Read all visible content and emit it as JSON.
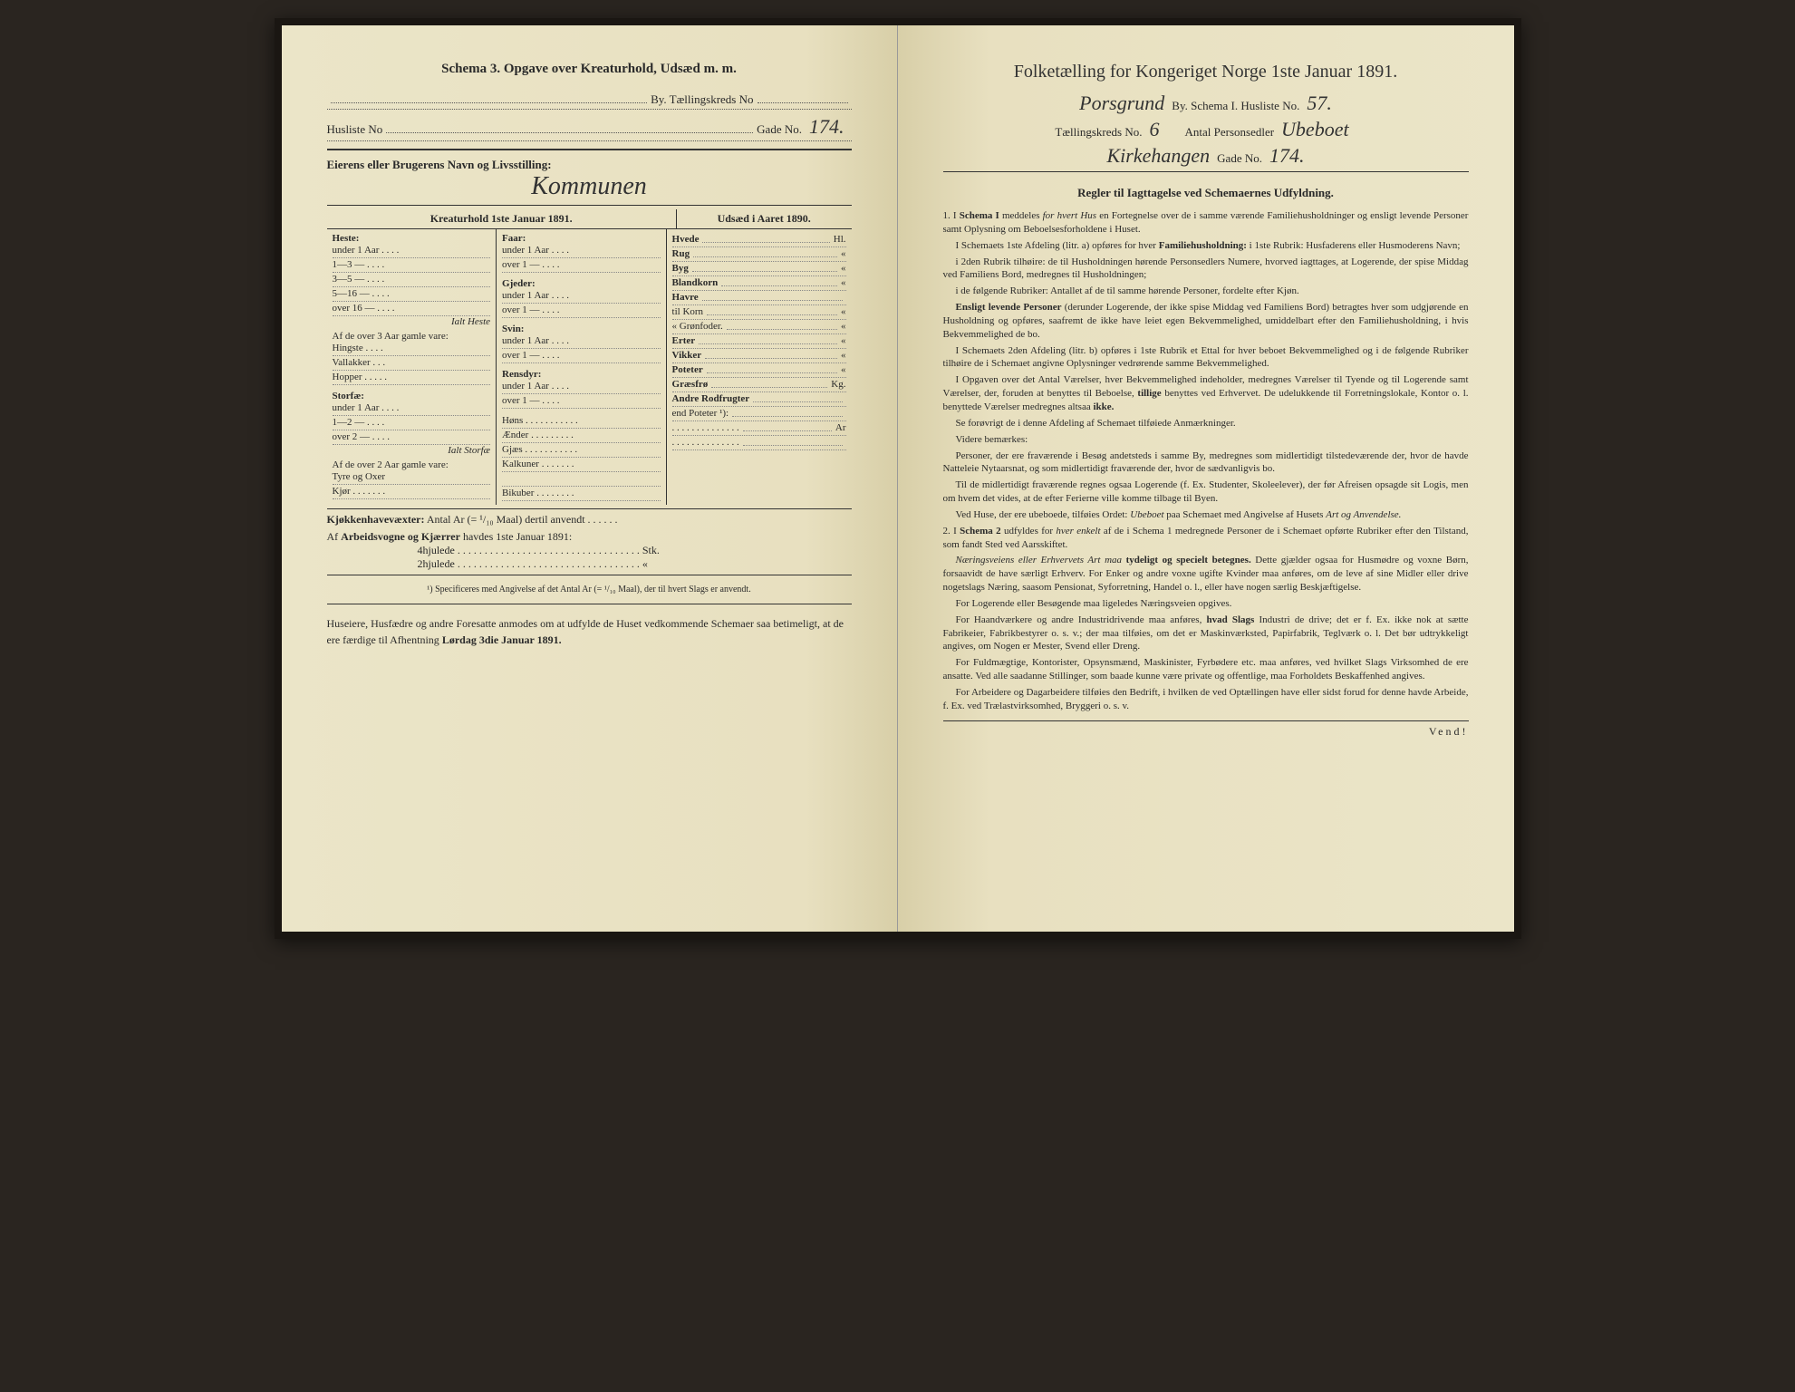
{
  "left": {
    "title": "Schema 3.  Opgave over Kreaturhold, Udsæd m. m.",
    "byLabel": "By.  Tællingskreds No",
    "huslisteLabel": "Husliste No",
    "gadeLabel": "Gade No.",
    "gadeVal": "174.",
    "eierLabel": "Eierens eller Brugerens Navn og Livsstilling:",
    "eierVal": "Kommunen",
    "kreaturTitle": "Kreaturhold 1ste Januar 1891.",
    "udsaedTitle": "Udsæd i Aaret 1890.",
    "col1": {
      "heste": "Heste:",
      "hesteRows": [
        "under 1 Aar . . . .",
        "1—3   —  . . . .",
        "3—5   —  . . . .",
        "5—16  —  . . . .",
        "over 16 —  . . . ."
      ],
      "ialtHeste": "Ialt Heste",
      "afOver3": "Af de over 3 Aar gamle vare:",
      "afOver3Rows": [
        "Hingste . . . .",
        "Vallakker . . .",
        "Hopper . . . . ."
      ],
      "storfae": "Storfæ:",
      "storfaeRows": [
        "under 1 Aar . . . .",
        "1—2   —  . . . .",
        "over 2   —  . . . ."
      ],
      "ialtStorfae": "Ialt Storfæ",
      "afOver2": "Af de over 2 Aar gamle vare:",
      "afOver2Rows": [
        "Tyre og Oxer",
        "Kjør . . . . . . ."
      ]
    },
    "col2": {
      "faar": "Faar:",
      "faarRows": [
        "under 1 Aar . . . .",
        "over 1  —  . . . ."
      ],
      "gjeder": "Gjeder:",
      "gjederRows": [
        "under 1 Aar . . . .",
        "over 1  —  . . . ."
      ],
      "svin": "Svin:",
      "svinRows": [
        "under 1 Aar . . . .",
        "over 1  —  . . . ."
      ],
      "rensdyr": "Rensdyr:",
      "rensdyrRows": [
        "under 1 Aar . . . .",
        "over 1  —  . . . ."
      ],
      "other": [
        "Høns . . . . . . . . . . .",
        "Ænder . . . . . . . . .",
        "Gjæs . . . . . . . . . . .",
        "Kalkuner . . . . . . .",
        "",
        "Bikuber . . . . . . . ."
      ]
    },
    "col3": {
      "rows": [
        {
          "l": "Hvede",
          "u": "Hl."
        },
        {
          "l": "Rug",
          "u": "«"
        },
        {
          "l": "Byg",
          "u": "«"
        },
        {
          "l": "Blandkorn",
          "u": "«"
        },
        {
          "l": "Havre",
          "u": ""
        },
        {
          "l": "  til Korn",
          "u": "«"
        },
        {
          "l": "  « Grønfoder.",
          "u": "«"
        },
        {
          "l": "Erter",
          "u": "«"
        },
        {
          "l": "Vikker",
          "u": "«"
        },
        {
          "l": "Poteter",
          "u": "«"
        },
        {
          "l": "Græsfrø",
          "u": "Kg."
        },
        {
          "l": "Andre Rodfrugter",
          "u": ""
        },
        {
          "l": "  end Poteter ¹):",
          "u": ""
        },
        {
          "l": ". . . . . . . . . . . . . .",
          "u": "Ar"
        },
        {
          "l": ". . . . . . . . . . . . . .",
          "u": ""
        }
      ]
    },
    "kjokken": "Kjøkkenhavevæxter:   Antal Ar (= ¹/₁₀ Maal) dertil anvendt . . . . . .",
    "arbeids": "Af Arbeidsvogne og Kjærrer havdes 1ste Januar 1891:",
    "hjul4": "4hjulede . . . . . . . . . . . . . . . . . . . . . . . . . . . . . . . . . . Stk.",
    "hjul2": "2hjulede . . . . . . . . . . . . . . . . . . . . . . . . . . . . . . . . . .  «",
    "foot1": "¹) Specificeres med Angivelse af det Antal Ar (= ¹/₁₀ Maal), der til hvert Slags er anvendt.",
    "bottom": "Huseiere, Husfædre og andre Foresatte anmodes om at udfylde de Huset vedkommende Schemaer saa betimeligt, at de ere færdige til Afhentning Lørdag 3die Januar 1891."
  },
  "right": {
    "title": "Folketælling for Kongeriget Norge 1ste Januar 1891.",
    "byVal": "Porsgrund",
    "byLabel": "By.   Schema I.   Husliste No.",
    "huslisteVal": "57.",
    "taelLabel": "Tællingskreds No.",
    "taelVal": "6",
    "antalLabel": "Antal Personsedler",
    "antalVal": "Ubeboet",
    "gadeName": "Kirkehangen",
    "gadeLabel": "Gade No.",
    "gadeVal": "174.",
    "reglerTitle": "Regler til Iagttagelse ved Schemaernes Udfyldning.",
    "paras": [
      "1. I <b>Schema I</b> meddeles <i>for hvert Hus</i> en Fortegnelse over de i samme værende Familiehusholdninger og ensligt levende Personer samt Oplysning om Beboelsesforholdene i Huset.",
      "I Schemaets 1ste Afdeling (litr. a) opføres for hver <b>Familiehusholdning:</b> i 1ste Rubrik: Husfaderens eller Husmoderens Navn;",
      "i 2den Rubrik tilhøire: de til Husholdningen hørende Personsedlers Numere, hvorved iagttages, at Logerende, der spise Middag ved Familiens Bord, medregnes til Husholdningen;",
      "i de følgende Rubriker: Antallet af de til samme hørende Personer, fordelte efter Kjøn.",
      "<b>Ensligt levende Personer</b> (derunder Logerende, der ikke spise Middag ved Familiens Bord) betragtes hver som udgjørende en Husholdning og opføres, saafremt de ikke have leiet egen Bekvemmelighed, umiddelbart efter den Familiehusholdning, i hvis Bekvemmelighed de bo.",
      "I Schemaets 2den Afdeling (litr. b) opføres i 1ste Rubrik et Ettal for hver beboet Bekvemmelighed og i de følgende Rubriker tilhøire de i Schemaet angivne Oplysninger vedrørende samme Bekvemmelighed.",
      "I Opgaven over det Antal Værelser, hver Bekvemmelighed indeholder, medregnes Værelser til Tyende og til Logerende samt Værelser, der, foruden at benyttes til Beboelse, <b>tillige</b> benyttes ved Erhvervet. De udelukkende til Forretningslokale, Kontor o. l. benyttede Værelser medregnes altsaa <b>ikke.</b>",
      "Se forøvrigt de i denne Afdeling af Schemaet tilføiede Anmærkninger.",
      "Videre bemærkes:",
      "Personer, der ere fraværende i Besøg andetsteds i samme By, medregnes som midlertidigt tilstedeværende der, hvor de havde Natteleie Nytaarsnat, og som midlertidigt fraværende der, hvor de sædvanligvis bo.",
      "Til de midlertidigt fraværende regnes ogsaa Logerende (f. Ex. Studenter, Skoleelever), der før Afreisen opsagde sit Logis, men om hvem det vides, at de efter Ferierne ville komme tilbage til Byen.",
      "Ved Huse, der ere ubeboede, tilføies Ordet: <i>Ubeboet</i> paa Schemaet med Angivelse af Husets <i>Art og Anvendelse.</i>",
      "2. I <b>Schema 2</b> udfyldes for <i>hver enkelt</i> af de i Schema 1 medregnede Personer de i Schemaet opførte Rubriker efter den Tilstand, som fandt Sted ved Aarsskiftet.",
      "<i>Næringsveiens eller Erhvervets Art maa</i> <b>tydeligt og specielt betegnes.</b> Dette gjælder ogsaa for Husmødre og voxne Børn, forsaavidt de have særligt Erhverv. For Enker og andre voxne ugifte Kvinder maa anføres, om de leve af sine Midler eller drive nogetslags Næring, saasom Pensionat, Syforretning, Handel o. l., eller have nogen særlig Beskjæftigelse.",
      "For Logerende eller Besøgende maa ligeledes Næringsveien opgives.",
      "For Haandværkere og andre Industridrivende maa anføres, <b>hvad Slags</b> Industri de drive; det er f. Ex. ikke nok at sætte Fabrikeier, Fabrikbestyrer o. s. v.; der maa tilføies, om det er Maskinværksted, Papirfabrik, Teglværk o. l. Det bør udtrykkeligt angives, om Nogen er Mester, Svend eller Dreng.",
      "For Fuldmægtige, Kontorister, Opsynsmænd, Maskinister, Fyrbødere etc. maa anføres, ved hvilket Slags Virksomhed de ere ansatte. Ved alle saadanne Stillinger, som baade kunne være private og offentlige, maa Forholdets Beskaffenhed angives.",
      "For Arbeidere og Dagarbeidere tilføies den Bedrift, i hvilken de ved Optællingen have eller sidst forud for denne havde Arbeide, f. Ex. ved Trælastvirksomhed, Bryggeri o. s. v."
    ],
    "vend": "Vend!"
  }
}
